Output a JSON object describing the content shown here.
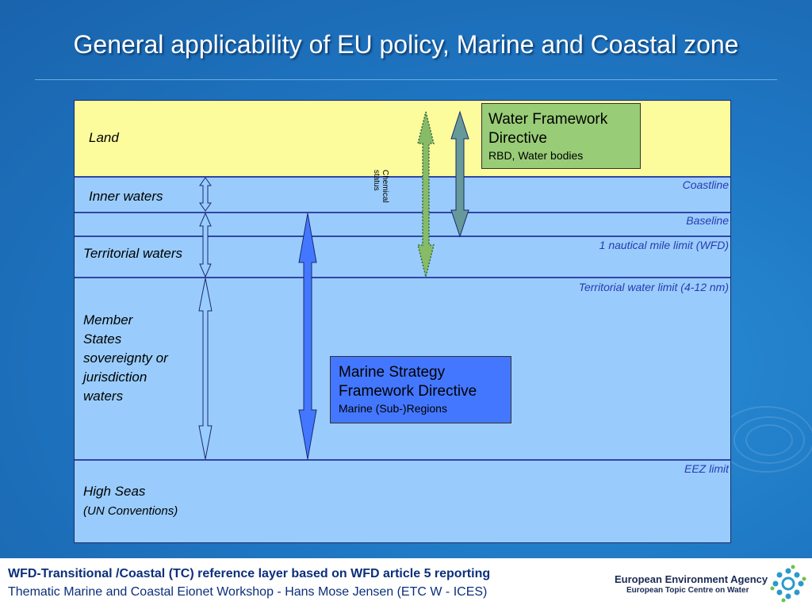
{
  "title": "General applicability of EU policy, Marine and Coastal zone",
  "zones": {
    "land": "Land",
    "inner_waters": "Inner waters",
    "territorial_waters": "Territorial waters",
    "member_states": [
      "Member",
      "States",
      "sovereignty or",
      "jurisdiction",
      "waters"
    ],
    "high_seas": "High Seas",
    "high_seas_sub": "(UN Conventions)"
  },
  "limits": {
    "coastline": "Coastline",
    "baseline": "Baseline",
    "nautical_mile": "1 nautical mile limit (WFD)",
    "territorial_limit": "Territorial water limit (4-12 nm)",
    "eez": "EEZ limit"
  },
  "wfd_box": {
    "title_line1": "Water Framework",
    "title_line2": "Directive",
    "subtitle": "RBD, Water bodies",
    "color": "#99cc77"
  },
  "msfd_box": {
    "title_line1": "Marine Strategy",
    "title_line2": "Framework Directive",
    "subtitle": "Marine (Sub-)Regions",
    "color": "#4477ff"
  },
  "chemical_label": [
    "Chemical",
    "status"
  ],
  "colors": {
    "land": "#fcfc9c",
    "water": "#99ccfc",
    "boundary_lines": "#3344aa",
    "limit_text": "#2a3ab0"
  },
  "footer": {
    "line1": "WFD-Transitional /Coastal (TC) reference layer based on WFD article 5 reporting",
    "line2": "Thematic Marine and Coastal Eionet Workshop   -   Hans Mose Jensen (ETC W - ICES)",
    "agency": "European Environment Agency",
    "centre": "European Topic Centre on Water"
  }
}
